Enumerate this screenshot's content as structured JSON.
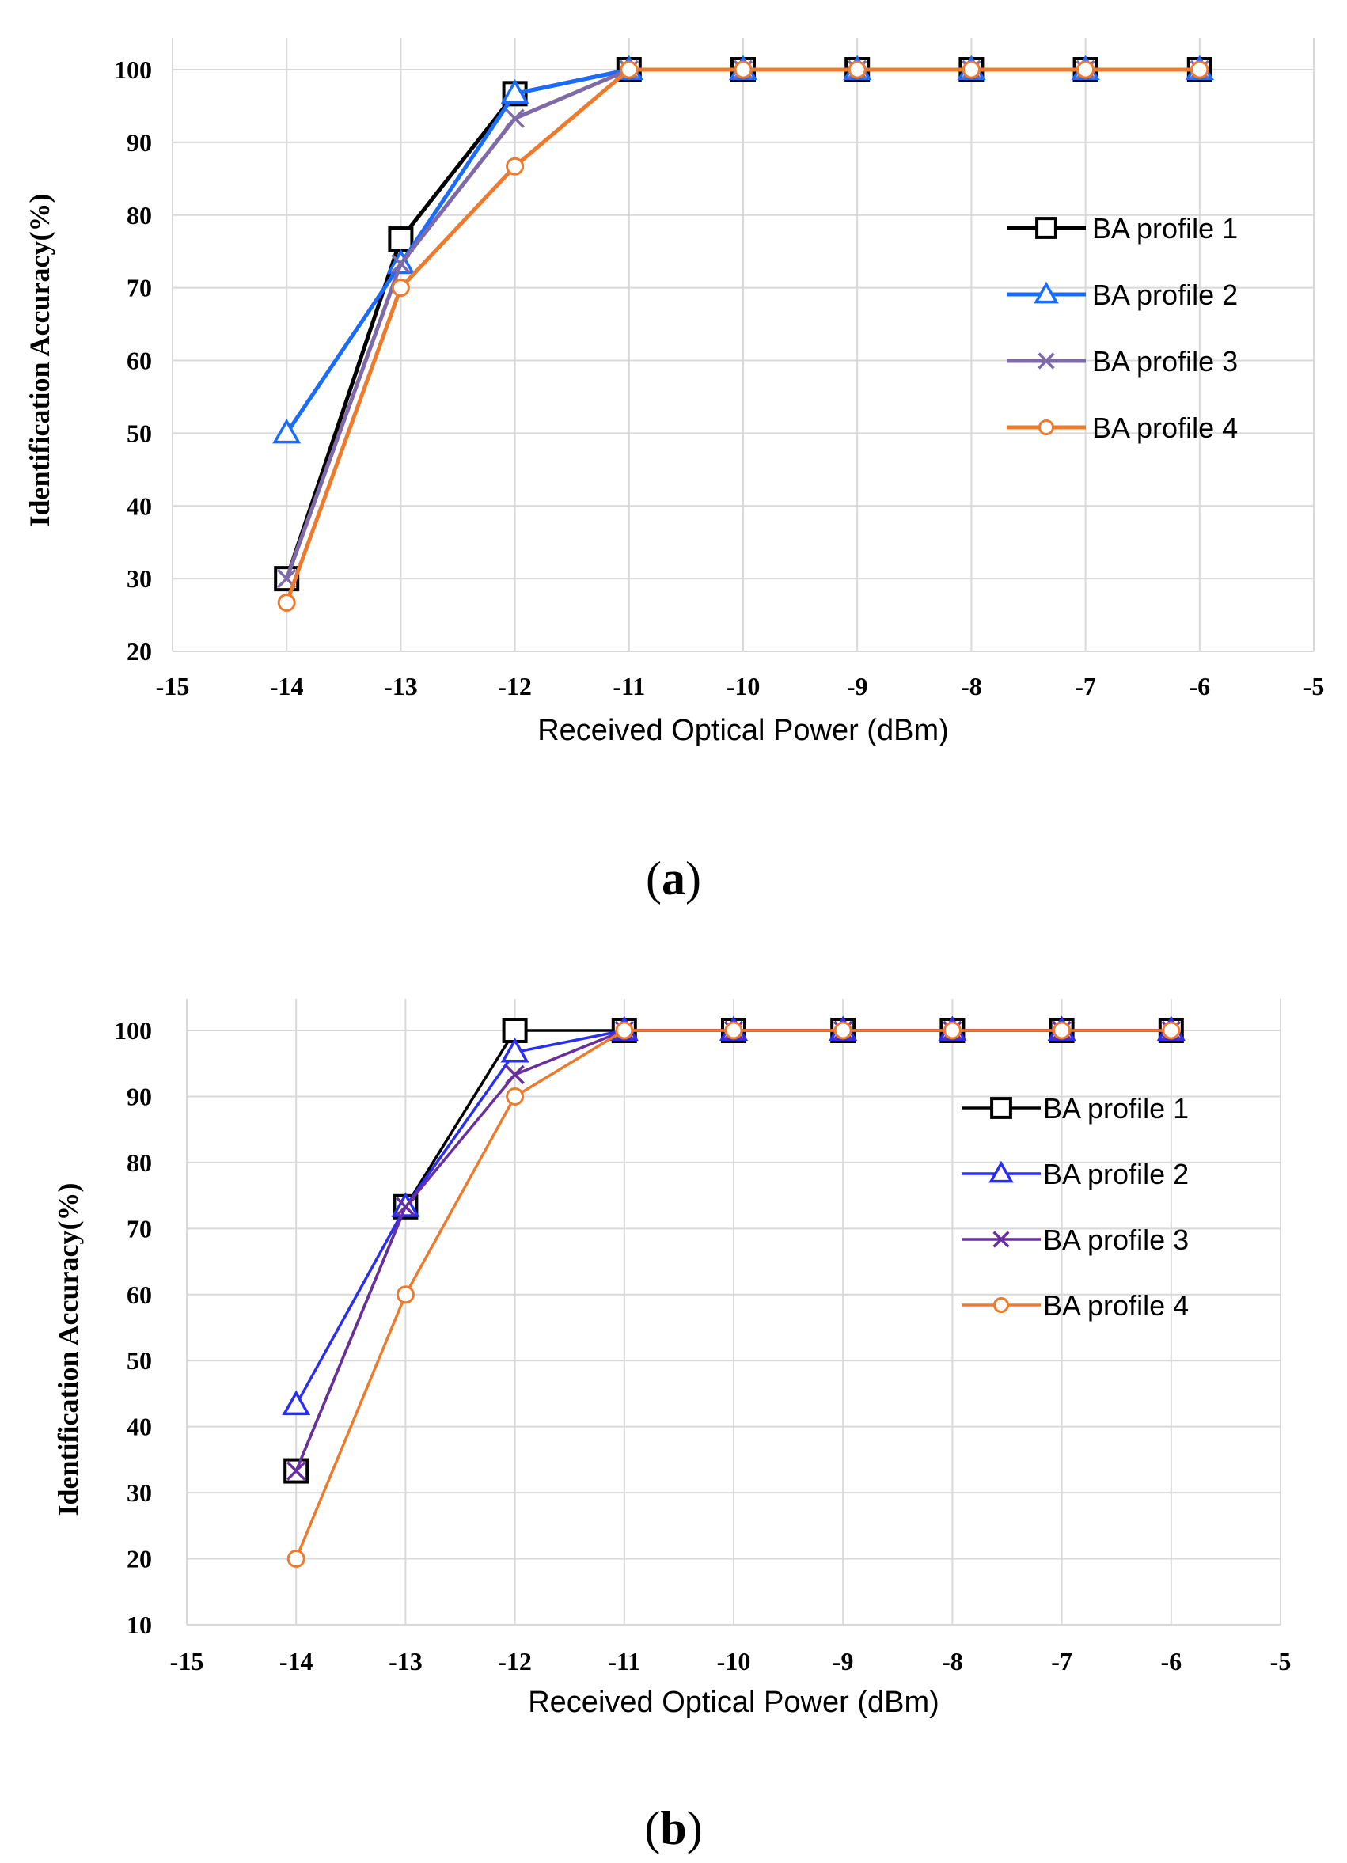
{
  "chart_data": [
    {
      "id": "a",
      "type": "line",
      "panel_label": "a",
      "xlabel": "Received Optical Power (dBm)",
      "ylabel": "Identification Accuracy(%)",
      "xlim": [
        -15,
        -5
      ],
      "ylim": [
        20,
        100
      ],
      "xticks": [
        -15,
        -14,
        -13,
        -12,
        -11,
        -10,
        -9,
        -8,
        -7,
        -6,
        -5
      ],
      "yticks": [
        20,
        30,
        40,
        50,
        60,
        70,
        80,
        90,
        100
      ],
      "grid": true,
      "legend_position": "right",
      "series": [
        {
          "name": "BA profile 1",
          "color": "#000000",
          "marker": "square",
          "x": [
            -14,
            -13,
            -12,
            -11,
            -10,
            -9,
            -8,
            -7,
            -6
          ],
          "y": [
            30,
            76.7,
            96.7,
            100,
            100,
            100,
            100,
            100,
            100
          ]
        },
        {
          "name": "BA profile 2",
          "color": "#1a6cff",
          "marker": "triangle",
          "x": [
            -14,
            -13,
            -12,
            -11,
            -10,
            -9,
            -8,
            -7,
            -6
          ],
          "y": [
            50,
            73.3,
            96.7,
            100,
            100,
            100,
            100,
            100,
            100
          ]
        },
        {
          "name": "BA profile 3",
          "color": "#7f6aa8",
          "marker": "x",
          "x": [
            -14,
            -13,
            -12,
            -11,
            -10,
            -9,
            -8,
            -7,
            -6
          ],
          "y": [
            30,
            73.3,
            93.3,
            100,
            100,
            100,
            100,
            100,
            100
          ]
        },
        {
          "name": "BA profile 4",
          "color": "#ee7a2c",
          "marker": "circle",
          "x": [
            -14,
            -13,
            -12,
            -11,
            -10,
            -9,
            -8,
            -7,
            -6
          ],
          "y": [
            26.7,
            70,
            86.7,
            100,
            100,
            100,
            100,
            100,
            100
          ]
        }
      ]
    },
    {
      "id": "b",
      "type": "line",
      "panel_label": "b",
      "xlabel": "Received Optical Power (dBm)",
      "ylabel": "Identification Accuracy(%)",
      "xlim": [
        -15,
        -5
      ],
      "ylim": [
        10,
        100
      ],
      "xticks": [
        -15,
        -14,
        -13,
        -12,
        -11,
        -10,
        -9,
        -8,
        -7,
        -6,
        -5
      ],
      "yticks": [
        10,
        20,
        30,
        40,
        50,
        60,
        70,
        80,
        90,
        100
      ],
      "grid": true,
      "legend_position": "right",
      "series": [
        {
          "name": "BA profile 1",
          "color": "#000000",
          "marker": "square",
          "x": [
            -14,
            -13,
            -12,
            -11,
            -10,
            -9,
            -8,
            -7,
            -6
          ],
          "y": [
            33.3,
            73.3,
            100,
            100,
            100,
            100,
            100,
            100,
            100
          ]
        },
        {
          "name": "BA profile 2",
          "color": "#2a2ef5",
          "marker": "triangle",
          "x": [
            -14,
            -13,
            -12,
            -11,
            -10,
            -9,
            -8,
            -7,
            -6
          ],
          "y": [
            43.3,
            73.3,
            96.7,
            100,
            100,
            100,
            100,
            100,
            100
          ]
        },
        {
          "name": "BA profile 3",
          "color": "#6a2f9e",
          "marker": "x",
          "x": [
            -14,
            -13,
            -12,
            -11,
            -10,
            -9,
            -8,
            -7,
            -6
          ],
          "y": [
            33.3,
            73.3,
            93.3,
            100,
            100,
            100,
            100,
            100,
            100
          ]
        },
        {
          "name": "BA profile 4",
          "color": "#ee7a2c",
          "marker": "circle",
          "x": [
            -14,
            -13,
            -12,
            -11,
            -10,
            -9,
            -8,
            -7,
            -6
          ],
          "y": [
            20,
            60,
            90,
            100,
            100,
            100,
            100,
            100,
            100
          ]
        }
      ]
    }
  ]
}
